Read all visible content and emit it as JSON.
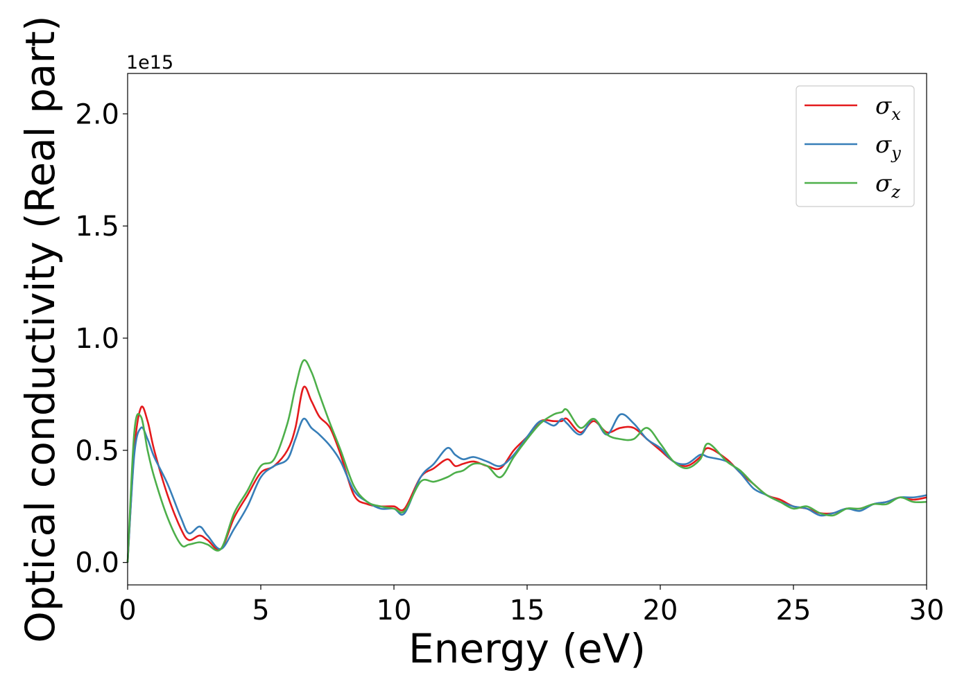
{
  "chart_data": {
    "type": "line",
    "title": "",
    "xlabel": "Energy (eV)",
    "ylabel": "Optical conductivity (Real part)",
    "y_offset_label": "1e15",
    "xlim": [
      0,
      30
    ],
    "ylim": [
      -0.1,
      2.18
    ],
    "x_ticks": [
      0,
      5,
      10,
      15,
      20,
      25,
      30
    ],
    "x_tick_labels": [
      "0",
      "5",
      "10",
      "15",
      "20",
      "25",
      "30"
    ],
    "y_ticks": [
      0.0,
      0.5,
      1.0,
      1.5,
      2.0
    ],
    "y_tick_labels": [
      "0.0",
      "0.5",
      "1.0",
      "1.5",
      "2.0"
    ],
    "grid": false,
    "legend_position": "top-right",
    "series": [
      {
        "name": "σx",
        "label_base": "σ",
        "label_sub": "x",
        "color": "#e41a1c",
        "x": [
          0,
          0.25,
          0.5,
          0.75,
          1.0,
          1.5,
          2.0,
          2.3,
          2.7,
          3.0,
          3.5,
          4.0,
          4.5,
          5.0,
          5.5,
          6.0,
          6.3,
          6.6,
          6.9,
          7.2,
          7.6,
          8.0,
          8.5,
          9.0,
          9.5,
          10.0,
          10.4,
          11.0,
          11.5,
          12.0,
          12.3,
          12.6,
          13.0,
          13.5,
          14.0,
          14.5,
          15.0,
          15.5,
          16.0,
          16.3,
          16.5,
          17.0,
          17.5,
          18.0,
          18.5,
          19.0,
          19.5,
          20.0,
          20.5,
          21.0,
          21.5,
          21.8,
          22.5,
          23.0,
          23.5,
          24.0,
          24.5,
          25.0,
          25.5,
          26.0,
          26.5,
          27.0,
          27.5,
          28.0,
          28.5,
          29.0,
          29.5,
          30.0
        ],
        "values": [
          0,
          0.5,
          0.69,
          0.63,
          0.5,
          0.3,
          0.15,
          0.1,
          0.12,
          0.1,
          0.06,
          0.2,
          0.3,
          0.4,
          0.43,
          0.5,
          0.6,
          0.78,
          0.72,
          0.65,
          0.6,
          0.48,
          0.3,
          0.26,
          0.25,
          0.25,
          0.24,
          0.38,
          0.42,
          0.46,
          0.43,
          0.44,
          0.45,
          0.43,
          0.42,
          0.5,
          0.56,
          0.63,
          0.63,
          0.63,
          0.64,
          0.58,
          0.63,
          0.58,
          0.6,
          0.6,
          0.55,
          0.5,
          0.45,
          0.43,
          0.47,
          0.51,
          0.46,
          0.4,
          0.35,
          0.3,
          0.28,
          0.25,
          0.24,
          0.22,
          0.22,
          0.24,
          0.24,
          0.26,
          0.27,
          0.29,
          0.28,
          0.29
        ]
      },
      {
        "name": "σy",
        "label_base": "σ",
        "label_sub": "y",
        "color": "#377eb8",
        "x": [
          0,
          0.25,
          0.5,
          0.75,
          1.0,
          1.5,
          2.0,
          2.3,
          2.7,
          3.0,
          3.5,
          4.0,
          4.5,
          5.0,
          5.5,
          6.0,
          6.3,
          6.6,
          6.9,
          7.2,
          7.6,
          8.0,
          8.5,
          9.0,
          9.5,
          10.0,
          10.4,
          11.0,
          11.5,
          12.0,
          12.3,
          12.6,
          13.0,
          13.5,
          14.0,
          14.5,
          15.0,
          15.5,
          16.0,
          16.3,
          16.5,
          17.0,
          17.5,
          18.0,
          18.5,
          19.0,
          19.5,
          20.0,
          20.5,
          21.0,
          21.5,
          21.8,
          22.5,
          23.0,
          23.5,
          24.0,
          24.5,
          25.0,
          25.5,
          26.0,
          26.5,
          27.0,
          27.5,
          28.0,
          28.5,
          29.0,
          29.5,
          30.0
        ],
        "values": [
          0,
          0.48,
          0.6,
          0.55,
          0.47,
          0.35,
          0.2,
          0.13,
          0.16,
          0.12,
          0.06,
          0.15,
          0.25,
          0.38,
          0.43,
          0.46,
          0.55,
          0.64,
          0.6,
          0.57,
          0.52,
          0.45,
          0.32,
          0.27,
          0.24,
          0.24,
          0.22,
          0.38,
          0.44,
          0.51,
          0.48,
          0.46,
          0.47,
          0.45,
          0.43,
          0.48,
          0.56,
          0.63,
          0.61,
          0.64,
          0.62,
          0.57,
          0.64,
          0.57,
          0.66,
          0.62,
          0.55,
          0.51,
          0.45,
          0.44,
          0.48,
          0.47,
          0.45,
          0.4,
          0.33,
          0.3,
          0.27,
          0.25,
          0.24,
          0.21,
          0.22,
          0.24,
          0.23,
          0.26,
          0.27,
          0.29,
          0.29,
          0.3
        ]
      },
      {
        "name": "σz",
        "label_base": "σ",
        "label_sub": "z",
        "color": "#4daf4a",
        "x": [
          0,
          0.25,
          0.5,
          0.75,
          1.0,
          1.5,
          2.0,
          2.3,
          2.7,
          3.0,
          3.5,
          4.0,
          4.5,
          5.0,
          5.5,
          6.0,
          6.3,
          6.6,
          6.9,
          7.2,
          7.6,
          8.0,
          8.5,
          9.0,
          9.5,
          10.0,
          10.4,
          11.0,
          11.5,
          12.0,
          12.3,
          12.6,
          13.0,
          13.5,
          14.0,
          14.5,
          15.0,
          15.5,
          16.0,
          16.3,
          16.5,
          17.0,
          17.5,
          18.0,
          18.5,
          19.0,
          19.5,
          20.0,
          20.5,
          21.0,
          21.5,
          21.8,
          22.5,
          23.0,
          23.5,
          24.0,
          24.5,
          25.0,
          25.5,
          26.0,
          26.5,
          27.0,
          27.5,
          28.0,
          28.5,
          29.0,
          29.5,
          30.0
        ],
        "values": [
          0,
          0.58,
          0.65,
          0.5,
          0.38,
          0.2,
          0.08,
          0.08,
          0.09,
          0.08,
          0.06,
          0.22,
          0.32,
          0.43,
          0.46,
          0.62,
          0.78,
          0.9,
          0.85,
          0.75,
          0.62,
          0.5,
          0.34,
          0.27,
          0.25,
          0.24,
          0.23,
          0.36,
          0.36,
          0.38,
          0.4,
          0.41,
          0.44,
          0.43,
          0.38,
          0.47,
          0.55,
          0.62,
          0.66,
          0.67,
          0.68,
          0.6,
          0.64,
          0.57,
          0.55,
          0.55,
          0.6,
          0.53,
          0.45,
          0.42,
          0.46,
          0.53,
          0.45,
          0.41,
          0.35,
          0.3,
          0.27,
          0.24,
          0.25,
          0.22,
          0.21,
          0.24,
          0.24,
          0.26,
          0.26,
          0.29,
          0.27,
          0.27
        ]
      }
    ]
  }
}
